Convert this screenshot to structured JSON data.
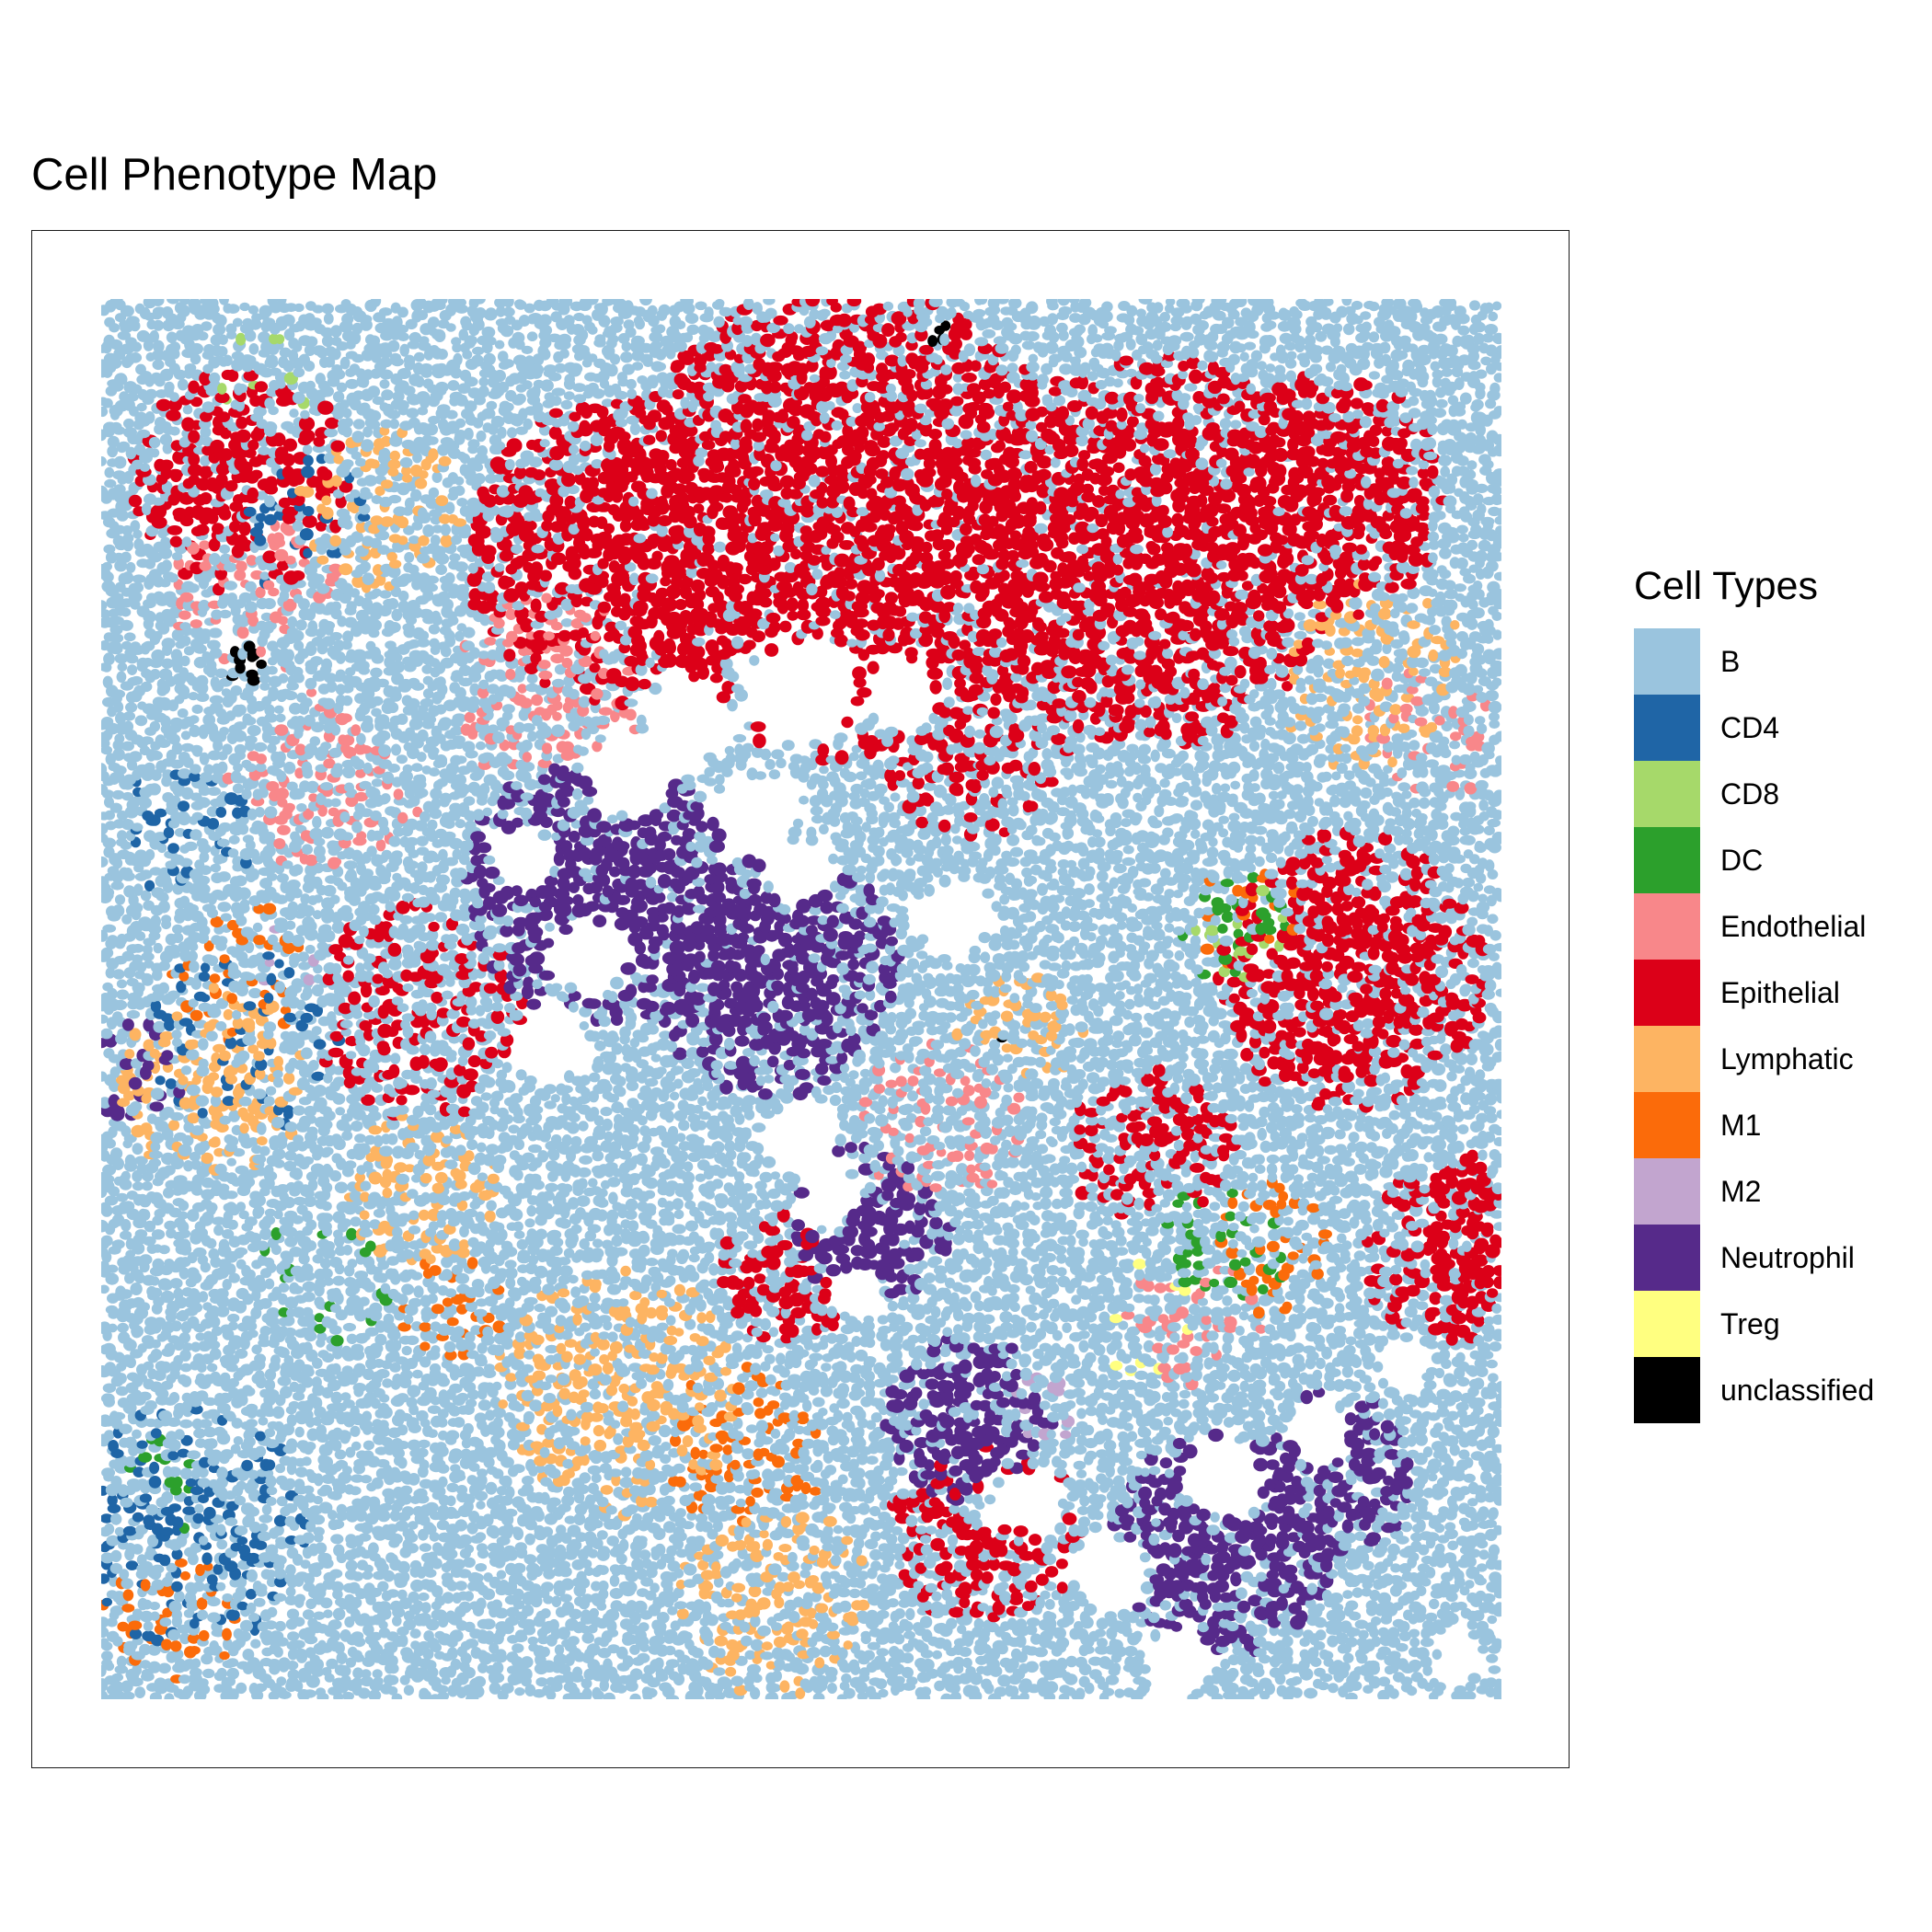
{
  "chart_data": {
    "type": "scatter",
    "title": "Cell Phenotype Map",
    "xlabel": "",
    "ylabel": "",
    "axes_visible": false,
    "grid": false,
    "legend_position": "right",
    "legend": {
      "title": "Cell Types",
      "entries": [
        {
          "label": "B",
          "color": "#9ac4de"
        },
        {
          "label": "CD4",
          "color": "#1f65a6"
        },
        {
          "label": "CD8",
          "color": "#a6d96a"
        },
        {
          "label": "DC",
          "color": "#2ca02c"
        },
        {
          "label": "Endothelial",
          "color": "#f8878a"
        },
        {
          "label": "Epithelial",
          "color": "#dc0018"
        },
        {
          "label": "Lymphatic",
          "color": "#fdb462"
        },
        {
          "label": "M1",
          "color": "#fb6b0a"
        },
        {
          "label": "M2",
          "color": "#c2a5cf"
        },
        {
          "label": "Neutrophil",
          "color": "#562a8a"
        },
        {
          "label": "Treg",
          "color": "#ffff80"
        },
        {
          "label": "unclassified",
          "color": "#000000"
        }
      ]
    },
    "xlim": [
      0,
      1
    ],
    "ylim": [
      0,
      1
    ],
    "background_type": "B",
    "regions": [
      {
        "type": "Epithelial",
        "x": 0.53,
        "y": 0.84,
        "r": 0.17,
        "d": 0.85
      },
      {
        "type": "Epithelial",
        "x": 0.37,
        "y": 0.82,
        "r": 0.11,
        "d": 0.85
      },
      {
        "type": "Epithelial",
        "x": 0.75,
        "y": 0.82,
        "r": 0.14,
        "d": 0.85
      },
      {
        "type": "Epithelial",
        "x": 0.87,
        "y": 0.86,
        "r": 0.09,
        "d": 0.75
      },
      {
        "type": "Epithelial",
        "x": 0.1,
        "y": 0.87,
        "r": 0.08,
        "d": 0.75
      },
      {
        "type": "Epithelial",
        "x": 0.89,
        "y": 0.52,
        "r": 0.1,
        "d": 0.8
      },
      {
        "type": "Epithelial",
        "x": 0.97,
        "y": 0.32,
        "r": 0.07,
        "d": 0.7
      },
      {
        "type": "Epithelial",
        "x": 0.75,
        "y": 0.39,
        "r": 0.06,
        "d": 0.55
      },
      {
        "type": "Epithelial",
        "x": 0.63,
        "y": 0.12,
        "r": 0.07,
        "d": 0.6
      },
      {
        "type": "Epithelial",
        "x": 0.49,
        "y": 0.3,
        "r": 0.05,
        "d": 0.6
      },
      {
        "type": "Epithelial",
        "x": 0.23,
        "y": 0.49,
        "r": 0.08,
        "d": 0.45
      },
      {
        "type": "Epithelial",
        "x": 0.62,
        "y": 0.68,
        "r": 0.07,
        "d": 0.4
      },
      {
        "type": "Neutrophil",
        "x": 0.36,
        "y": 0.58,
        "r": 0.1,
        "d": 0.9
      },
      {
        "type": "Neutrophil",
        "x": 0.48,
        "y": 0.52,
        "r": 0.09,
        "d": 0.9
      },
      {
        "type": "Neutrophil",
        "x": 0.55,
        "y": 0.34,
        "r": 0.06,
        "d": 0.85
      },
      {
        "type": "Neutrophil",
        "x": 0.62,
        "y": 0.2,
        "r": 0.06,
        "d": 0.8
      },
      {
        "type": "Neutrophil",
        "x": 0.8,
        "y": 0.11,
        "r": 0.08,
        "d": 0.85
      },
      {
        "type": "Neutrophil",
        "x": 0.88,
        "y": 0.16,
        "r": 0.06,
        "d": 0.75
      },
      {
        "type": "Neutrophil",
        "x": 0.02,
        "y": 0.45,
        "r": 0.04,
        "d": 0.4
      },
      {
        "type": "CD4",
        "x": 0.06,
        "y": 0.12,
        "r": 0.09,
        "d": 0.4
      },
      {
        "type": "CD4",
        "x": 0.1,
        "y": 0.47,
        "r": 0.07,
        "d": 0.35
      },
      {
        "type": "CD4",
        "x": 0.14,
        "y": 0.84,
        "r": 0.05,
        "d": 0.3
      },
      {
        "type": "CD4",
        "x": 0.06,
        "y": 0.62,
        "r": 0.05,
        "d": 0.25
      },
      {
        "type": "Lymphatic",
        "x": 0.2,
        "y": 0.85,
        "r": 0.06,
        "d": 0.5
      },
      {
        "type": "Lymphatic",
        "x": 0.37,
        "y": 0.22,
        "r": 0.09,
        "d": 0.55
      },
      {
        "type": "Lymphatic",
        "x": 0.48,
        "y": 0.07,
        "r": 0.07,
        "d": 0.5
      },
      {
        "type": "Lymphatic",
        "x": 0.08,
        "y": 0.44,
        "r": 0.07,
        "d": 0.5
      },
      {
        "type": "Lymphatic",
        "x": 0.23,
        "y": 0.37,
        "r": 0.06,
        "d": 0.45
      },
      {
        "type": "Lymphatic",
        "x": 0.91,
        "y": 0.73,
        "r": 0.07,
        "d": 0.35
      },
      {
        "type": "Lymphatic",
        "x": 0.66,
        "y": 0.48,
        "r": 0.05,
        "d": 0.4
      },
      {
        "type": "M1",
        "x": 0.46,
        "y": 0.18,
        "r": 0.06,
        "d": 0.4
      },
      {
        "type": "M1",
        "x": 0.83,
        "y": 0.32,
        "r": 0.05,
        "d": 0.35
      },
      {
        "type": "M1",
        "x": 0.82,
        "y": 0.56,
        "r": 0.04,
        "d": 0.35
      },
      {
        "type": "M1",
        "x": 0.1,
        "y": 0.52,
        "r": 0.05,
        "d": 0.3
      },
      {
        "type": "M1",
        "x": 0.25,
        "y": 0.28,
        "r": 0.04,
        "d": 0.3
      },
      {
        "type": "M1",
        "x": 0.05,
        "y": 0.06,
        "r": 0.05,
        "d": 0.25
      },
      {
        "type": "Endothelial",
        "x": 0.32,
        "y": 0.72,
        "r": 0.07,
        "d": 0.35
      },
      {
        "type": "Endothelial",
        "x": 0.16,
        "y": 0.65,
        "r": 0.07,
        "d": 0.35
      },
      {
        "type": "Endothelial",
        "x": 0.6,
        "y": 0.41,
        "r": 0.06,
        "d": 0.35
      },
      {
        "type": "Endothelial",
        "x": 0.11,
        "y": 0.79,
        "r": 0.06,
        "d": 0.35
      },
      {
        "type": "Endothelial",
        "x": 0.78,
        "y": 0.27,
        "r": 0.05,
        "d": 0.3
      },
      {
        "type": "Endothelial",
        "x": 0.95,
        "y": 0.69,
        "r": 0.05,
        "d": 0.3
      },
      {
        "type": "DC",
        "x": 0.8,
        "y": 0.32,
        "r": 0.05,
        "d": 0.25
      },
      {
        "type": "DC",
        "x": 0.81,
        "y": 0.55,
        "r": 0.04,
        "d": 0.3
      },
      {
        "type": "DC",
        "x": 0.16,
        "y": 0.3,
        "r": 0.05,
        "d": 0.15
      },
      {
        "type": "DC",
        "x": 0.05,
        "y": 0.16,
        "r": 0.04,
        "d": 0.15
      },
      {
        "type": "CD8",
        "x": 0.82,
        "y": 0.55,
        "r": 0.04,
        "d": 0.2
      },
      {
        "type": "CD8",
        "x": 0.12,
        "y": 0.95,
        "r": 0.04,
        "d": 0.12
      },
      {
        "type": "M2",
        "x": 0.68,
        "y": 0.21,
        "r": 0.03,
        "d": 0.2
      },
      {
        "type": "M2",
        "x": 0.13,
        "y": 0.53,
        "r": 0.03,
        "d": 0.15
      },
      {
        "type": "Treg",
        "x": 0.76,
        "y": 0.27,
        "r": 0.05,
        "d": 0.08
      },
      {
        "type": "unclassified",
        "x": 0.105,
        "y": 0.74,
        "r": 0.015,
        "d": 0.6
      },
      {
        "type": "unclassified",
        "x": 0.6,
        "y": 0.975,
        "r": 0.008,
        "d": 0.6
      },
      {
        "type": "unclassified",
        "x": 0.64,
        "y": 0.47,
        "r": 0.005,
        "d": 0.6
      }
    ],
    "empty_areas": [
      {
        "x": 0.5,
        "y": 0.72,
        "r": 0.045
      },
      {
        "x": 0.42,
        "y": 0.7,
        "r": 0.035
      },
      {
        "x": 0.38,
        "y": 0.66,
        "r": 0.035
      },
      {
        "x": 0.3,
        "y": 0.6,
        "r": 0.025
      },
      {
        "x": 0.47,
        "y": 0.63,
        "r": 0.035
      },
      {
        "x": 0.5,
        "y": 0.59,
        "r": 0.025
      },
      {
        "x": 0.61,
        "y": 0.56,
        "r": 0.03
      },
      {
        "x": 0.57,
        "y": 0.72,
        "r": 0.03
      },
      {
        "x": 0.32,
        "y": 0.47,
        "r": 0.03
      },
      {
        "x": 0.35,
        "y": 0.53,
        "r": 0.03
      },
      {
        "x": 0.5,
        "y": 0.4,
        "r": 0.03
      },
      {
        "x": 0.52,
        "y": 0.36,
        "r": 0.025
      },
      {
        "x": 0.54,
        "y": 0.29,
        "r": 0.02
      },
      {
        "x": 0.66,
        "y": 0.14,
        "r": 0.025
      },
      {
        "x": 0.72,
        "y": 0.09,
        "r": 0.03
      },
      {
        "x": 0.8,
        "y": 0.16,
        "r": 0.03
      },
      {
        "x": 0.87,
        "y": 0.19,
        "r": 0.025
      },
      {
        "x": 0.93,
        "y": 0.24,
        "r": 0.02
      },
      {
        "x": 0.77,
        "y": 0.03,
        "r": 0.025
      },
      {
        "x": 0.97,
        "y": 0.03,
        "r": 0.02
      }
    ]
  }
}
